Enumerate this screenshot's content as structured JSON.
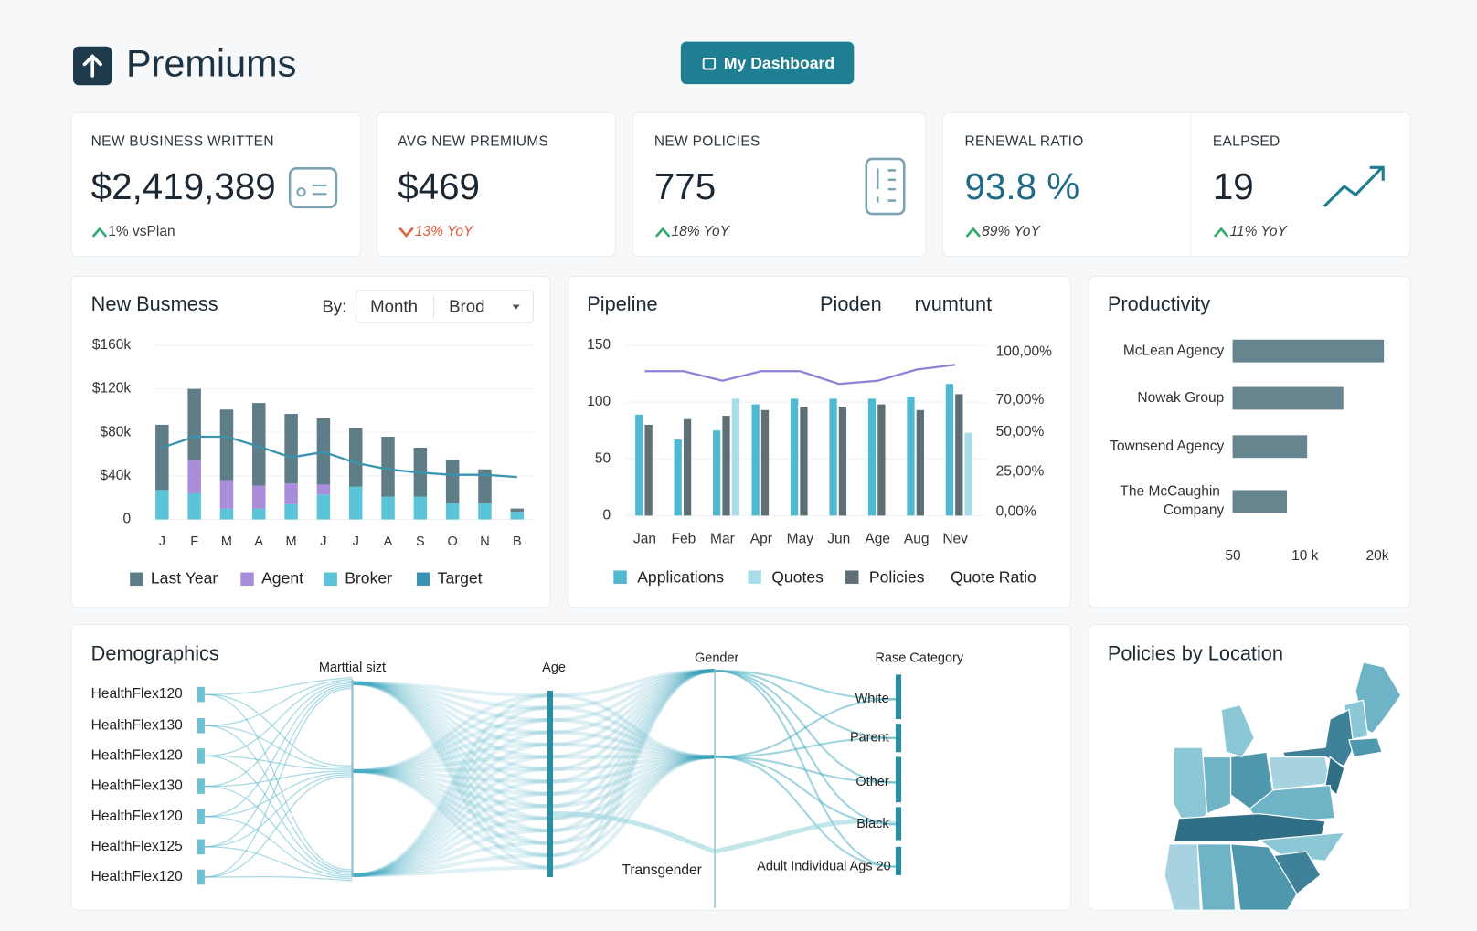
{
  "header": {
    "title": "Premiums",
    "button": "My Dashboard"
  },
  "kpis": [
    {
      "label": "NEW BUSINESS WRITTEN",
      "value": "$2,419,389",
      "change": "1% vsPlan",
      "trend": "up"
    },
    {
      "label": "AVG NEW PREMIUMS",
      "value": "$469",
      "change": "13% YoY",
      "trend": "down"
    },
    {
      "label": "NEW POLICIES",
      "value": "775",
      "change": "18% YoY",
      "trend": "up"
    },
    {
      "label": "RENEWAL RATIO",
      "value": "93.8 %",
      "change": "89% YoY",
      "trend": "up"
    },
    {
      "label": "EALPSED",
      "value": "19",
      "change": "11% YoY",
      "trend": "up"
    }
  ],
  "chart_data": [
    {
      "type": "bar",
      "stacked": true,
      "title": "New Busmess",
      "controls": {
        "label": "By:",
        "options": [
          "Month",
          "Brod"
        ]
      },
      "categories": [
        "J",
        "F",
        "M",
        "A",
        "M",
        "J",
        "J",
        "A",
        "S",
        "O",
        "N",
        "B"
      ],
      "series": [
        {
          "name": "Last Year",
          "color": "#5f7d87",
          "values": [
            60000,
            66000,
            65000,
            76000,
            64000,
            61000,
            54000,
            55000,
            45000,
            40000,
            31000,
            3000
          ]
        },
        {
          "name": "Agent",
          "color": "#a98cda",
          "values": [
            0,
            30000,
            26000,
            21000,
            19000,
            9000,
            0,
            0,
            0,
            0,
            0,
            0
          ]
        },
        {
          "name": "Broker",
          "color": "#5cc4d8",
          "values": [
            27000,
            24000,
            10000,
            10000,
            14000,
            23000,
            30000,
            21000,
            21000,
            15000,
            15000,
            7000
          ]
        },
        {
          "name": "Target",
          "type": "line",
          "color": "#3a93b0",
          "values": [
            66000,
            76000,
            76000,
            67000,
            57000,
            62000,
            52000,
            46000,
            43000,
            41000,
            41000,
            39000
          ]
        }
      ],
      "ylim": [
        0,
        160000
      ],
      "yticks": [
        0,
        {
          "value": 40000,
          "label": "$40k"
        },
        {
          "value": 80000,
          "label": "$80k"
        },
        {
          "value": 120000,
          "label": "$120k"
        },
        {
          "value": 160000,
          "label": "$160k"
        }
      ],
      "grid": true
    },
    {
      "type": "bar",
      "stacked": false,
      "title": "Pipeline",
      "subtitles": [
        "Pioden",
        "rvumtunt"
      ],
      "categories": [
        "Jan",
        "Feb",
        "Mar",
        "Apr",
        "May",
        "Jun",
        "Age",
        "Aug",
        "Nev"
      ],
      "series": [
        {
          "name": "Applications",
          "color": "#4fb9d1",
          "values": [
            89,
            67,
            75,
            98,
            103,
            103,
            103,
            105,
            116
          ]
        },
        {
          "name": "Quotes",
          "color": "#a9dbe8",
          "values": [
            null,
            null,
            103,
            null,
            null,
            null,
            null,
            null,
            73
          ]
        },
        {
          "name": "Policies",
          "color": "#5e6f76",
          "values": [
            80,
            85,
            88,
            93,
            96,
            96,
            98,
            93,
            107
          ]
        },
        {
          "name": "Quote Ratio",
          "type": "line",
          "axis": "y2",
          "color": "#8f80d8",
          "values": [
            88,
            88,
            82,
            88,
            88,
            80,
            82,
            89,
            92
          ]
        }
      ],
      "ylim": [
        0,
        150
      ],
      "yticks": [
        0,
        50,
        100,
        150
      ],
      "y2lim": [
        0,
        100
      ],
      "y2ticks": [
        {
          "value": 0,
          "label": "0,00%"
        },
        {
          "value": 25,
          "label": "25,00%"
        },
        {
          "value": 50,
          "label": "50,00%"
        },
        {
          "value": 70,
          "label": "70,00%"
        },
        {
          "value": 100,
          "label": "100,00%"
        }
      ],
      "grid": true
    },
    {
      "type": "hbar",
      "title": "Productivity",
      "categories": [
        "McLean Agency",
        "Nowak Group",
        "Townsend Agency",
        "The McCaughin Company"
      ],
      "values": [
        20900,
        15300,
        10300,
        7500
      ],
      "color": "#67858f",
      "xlim": [
        0,
        20000
      ],
      "xticks": [
        50,
        {
          "value": 10000,
          "label": "10 k"
        },
        {
          "value": 20000,
          "label": "20k"
        }
      ]
    }
  ],
  "demographics": {
    "title": "Demographics",
    "dimensions": [
      "Marttial sizt",
      "Age",
      "Gender",
      "Rase Category"
    ],
    "plans": [
      "HealthFlex120",
      "HealthFlex130",
      "HealthFlex120",
      "HealthFlex130",
      "HealthFlex120",
      "HealthFlex125",
      "HealthFlex120"
    ],
    "categories": [
      "White",
      "Parent",
      "Other",
      "Black",
      "Adult Individual Ags 20"
    ],
    "gender_label": "Transgender"
  },
  "map": {
    "title": "Policies by Location"
  }
}
